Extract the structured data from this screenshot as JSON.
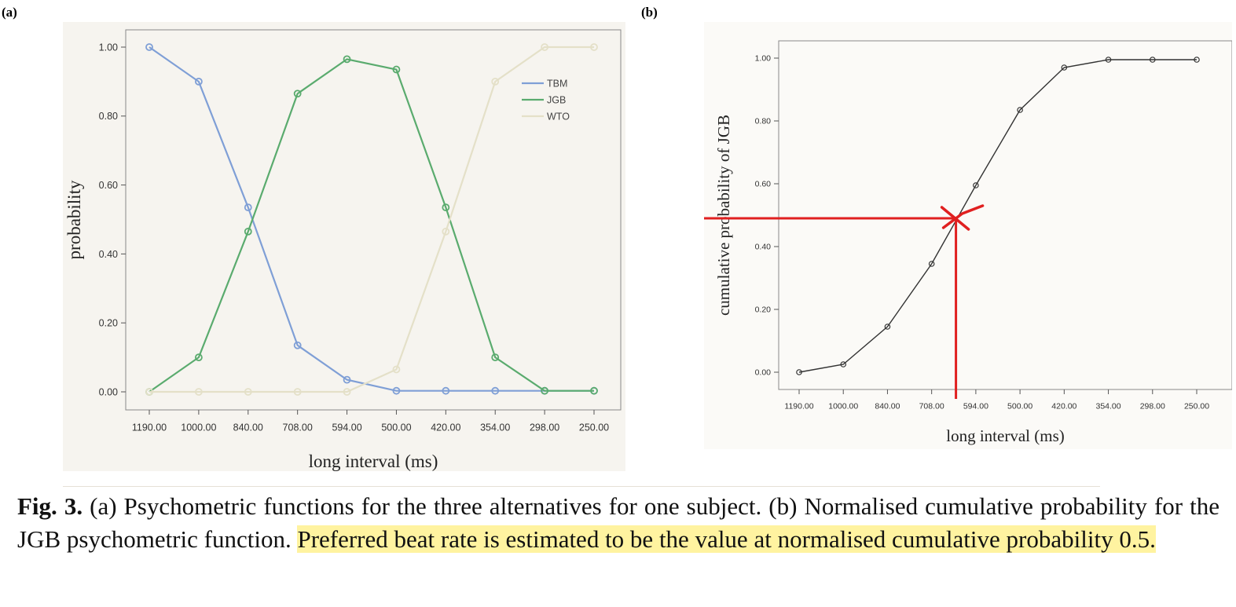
{
  "panel_labels": {
    "a": "(a)",
    "b": "(b)"
  },
  "caption": {
    "fig_label": "Fig. 3.",
    "plain": " (a) Psychometric functions for the three alternatives for one subject. (b) Normalised cumulative probability for the JGB psychometric function. ",
    "highlighted": "Preferred beat rate is estimated to be the value at normalised cumulative probability 0.5."
  },
  "chart_data": [
    {
      "type": "line",
      "panel": "(a)",
      "title": "",
      "xlabel": "long interval (ms)",
      "ylabel": "probability",
      "categories": [
        "1190.00",
        "1000.00",
        "840.00",
        "708.00",
        "594.00",
        "500.00",
        "420.00",
        "354.00",
        "298.00",
        "250.00"
      ],
      "y_ticks": [
        "0.00",
        "0.20",
        "0.40",
        "0.60",
        "0.80",
        "1.00"
      ],
      "ylim": [
        0,
        1
      ],
      "grid": false,
      "legend_position": "top-right",
      "series": [
        {
          "name": "TBM",
          "color": "#7f9fd6",
          "values": [
            1.0,
            0.9,
            0.535,
            0.135,
            0.035,
            0.003,
            0.003,
            0.003,
            0.003,
            0.003
          ]
        },
        {
          "name": "JGB",
          "color": "#5aab6e",
          "values": [
            0.0,
            0.1,
            0.465,
            0.865,
            0.965,
            0.935,
            0.535,
            0.1,
            0.003,
            0.003
          ]
        },
        {
          "name": "WTO",
          "color": "#e4e0c8",
          "values": [
            0.0,
            0.0,
            0.0,
            0.0,
            0.0,
            0.065,
            0.465,
            0.9,
            1.0,
            1.0
          ]
        }
      ]
    },
    {
      "type": "line",
      "panel": "(b)",
      "title": "",
      "xlabel": "long interval (ms)",
      "ylabel": "cumulative probability of JGB",
      "categories": [
        "1190.00",
        "1000.00",
        "840.00",
        "708.00",
        "594.00",
        "500.00",
        "420.00",
        "354.00",
        "298.00",
        "250.00"
      ],
      "y_ticks": [
        "0.00",
        "0.20",
        "0.40",
        "0.60",
        "0.80",
        "1.00"
      ],
      "ylim": [
        0,
        1
      ],
      "grid": false,
      "series": [
        {
          "name": "",
          "color": "#333333",
          "values": [
            0.0,
            0.025,
            0.145,
            0.345,
            0.595,
            0.835,
            0.97,
            0.995,
            0.995,
            0.995
          ]
        }
      ],
      "annotation": {
        "type": "crosshair",
        "y": 0.49,
        "x_position_between": [
          "708.00",
          "594.00"
        ],
        "x_fraction": 0.55,
        "color": "#e02020"
      }
    }
  ]
}
